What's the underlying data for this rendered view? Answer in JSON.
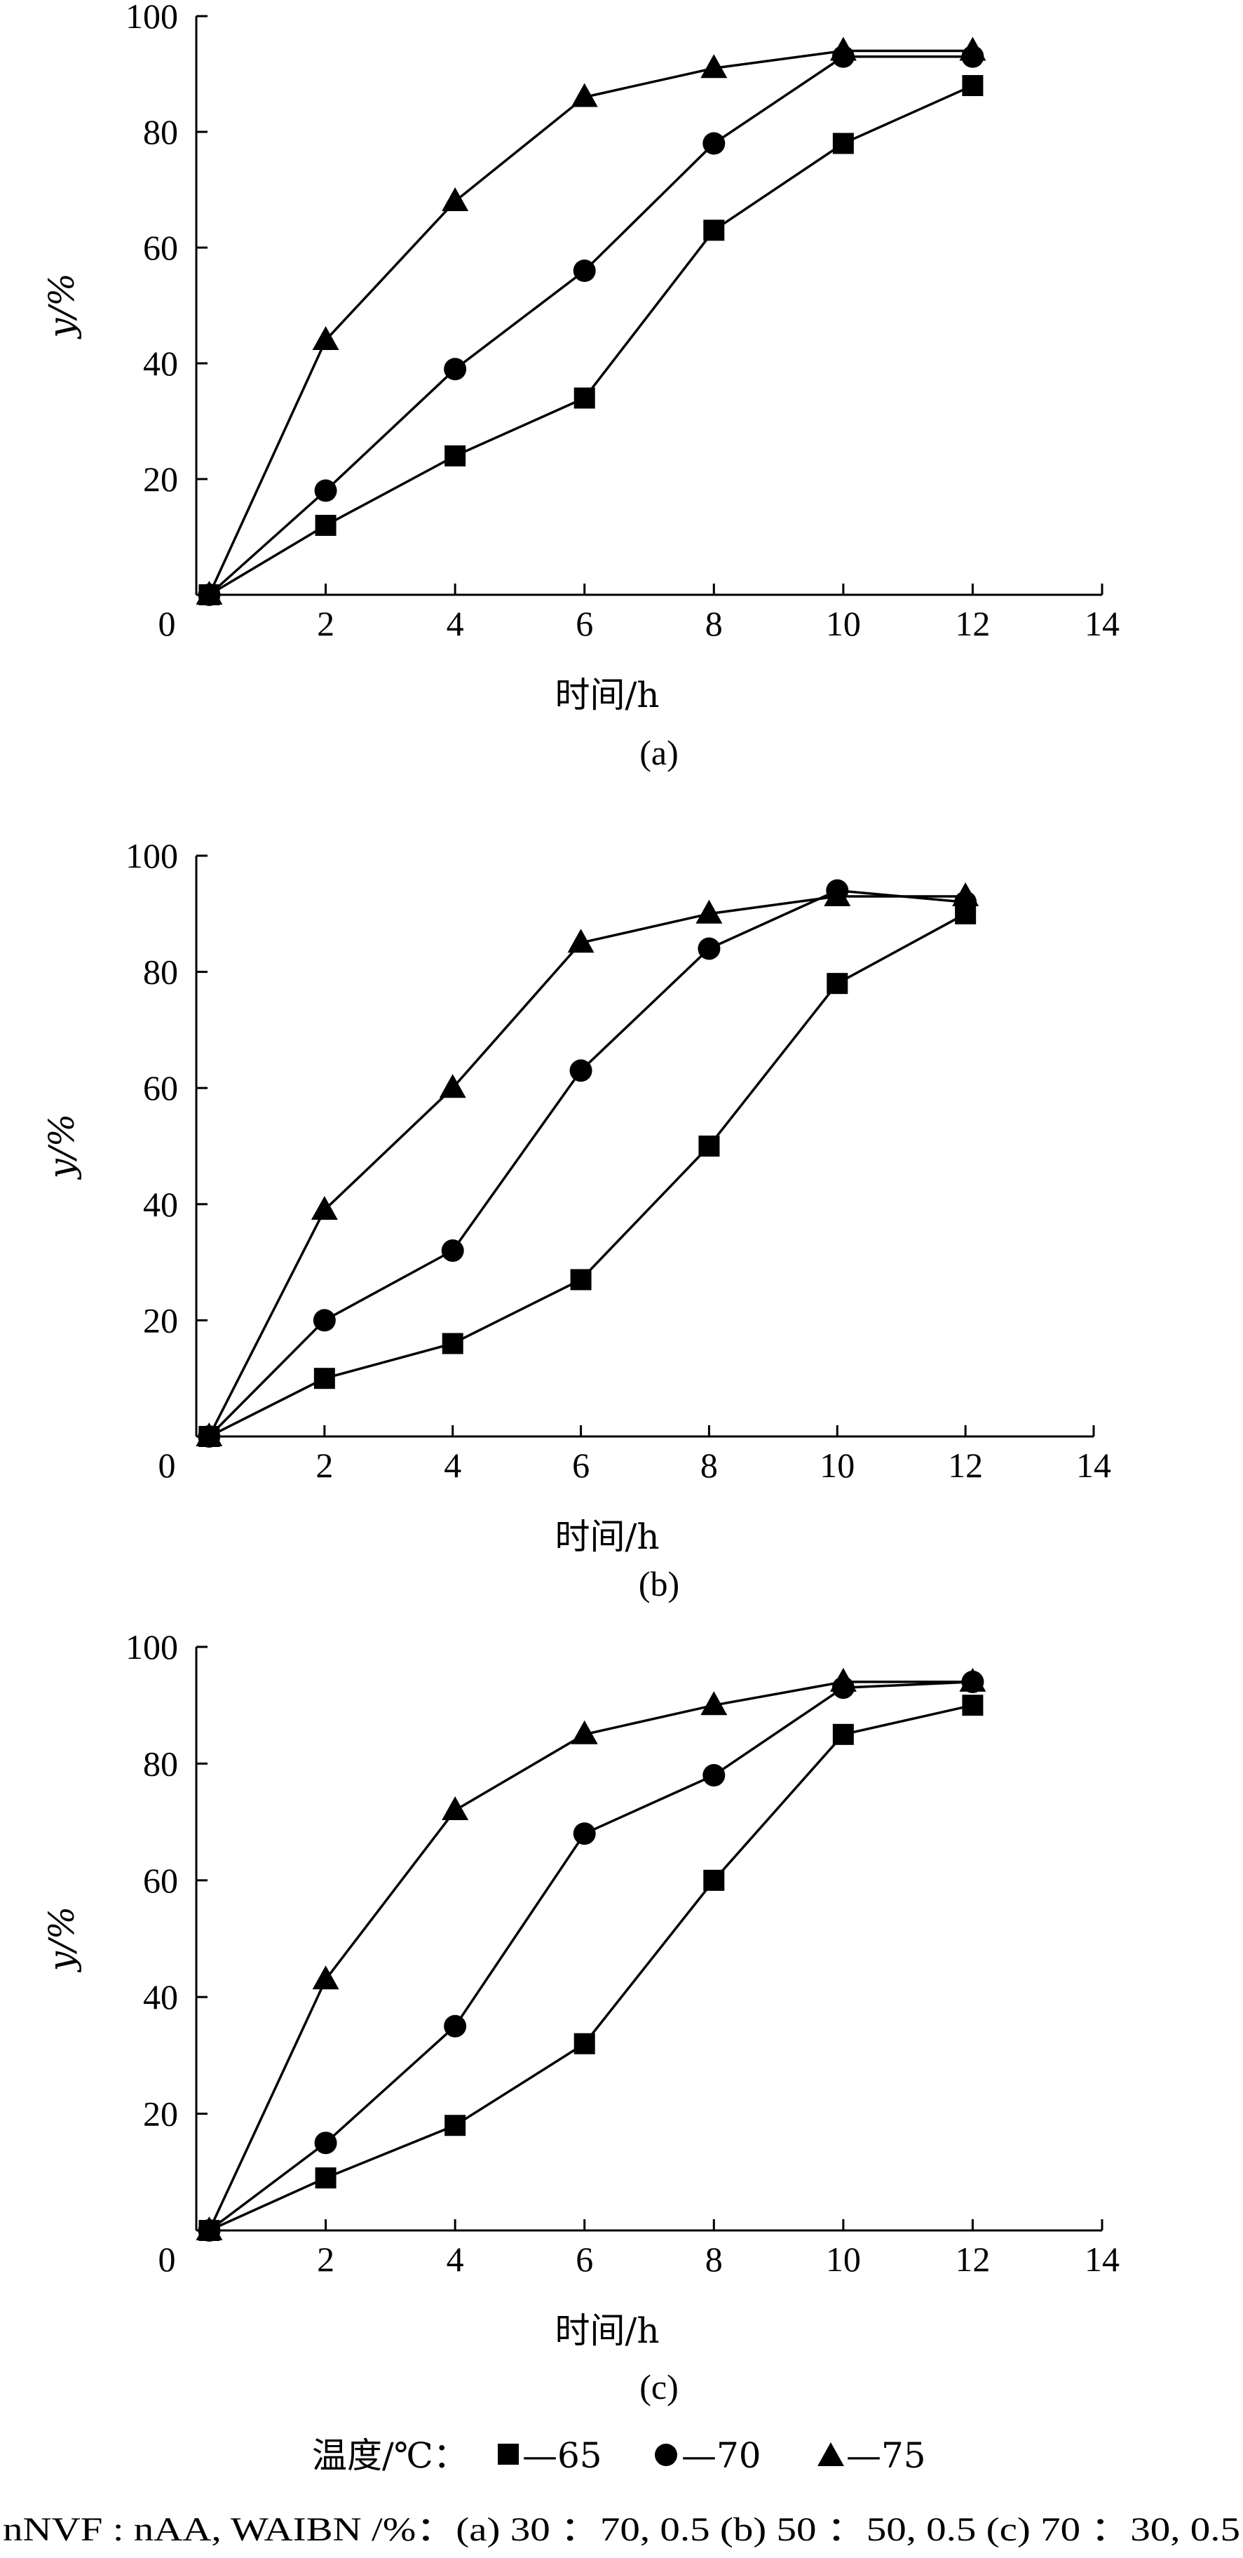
{
  "chart_data": [
    {
      "type": "line",
      "panel_label": "(a)",
      "xlabel": "时间/h",
      "ylabel": "y/%",
      "xlim": [
        0,
        14
      ],
      "ylim": [
        0,
        100
      ],
      "x_ticks": [
        0,
        2,
        4,
        6,
        8,
        10,
        12,
        14
      ],
      "y_ticks": [
        20,
        40,
        60,
        80,
        100
      ],
      "grid": false,
      "series": [
        {
          "name": "65",
          "marker": "square",
          "x": [
            0.2,
            2,
            4,
            6,
            8,
            10,
            12
          ],
          "y": [
            0,
            12,
            24,
            34,
            63,
            78,
            88
          ]
        },
        {
          "name": "70",
          "marker": "circle",
          "x": [
            0.2,
            2,
            4,
            6,
            8,
            10,
            12
          ],
          "y": [
            0,
            18,
            39,
            56,
            78,
            93,
            93
          ]
        },
        {
          "name": "75",
          "marker": "triangle",
          "x": [
            0.2,
            2,
            4,
            6,
            8,
            10,
            12
          ],
          "y": [
            0,
            44,
            68,
            86,
            91,
            94,
            94
          ]
        }
      ]
    },
    {
      "type": "line",
      "panel_label": "(b)",
      "xlabel": "时间/h",
      "ylabel": "y/%",
      "xlim": [
        0,
        14
      ],
      "ylim": [
        0,
        100
      ],
      "x_ticks": [
        0,
        2,
        4,
        6,
        8,
        10,
        12,
        14
      ],
      "y_ticks": [
        20,
        40,
        60,
        80,
        100
      ],
      "grid": false,
      "series": [
        {
          "name": "65",
          "marker": "square",
          "x": [
            0.2,
            2,
            4,
            6,
            8,
            10,
            12
          ],
          "y": [
            0,
            10,
            16,
            27,
            50,
            78,
            90
          ]
        },
        {
          "name": "70",
          "marker": "circle",
          "x": [
            0.2,
            2,
            4,
            6,
            8,
            10,
            12
          ],
          "y": [
            0,
            20,
            32,
            63,
            84,
            94,
            92
          ]
        },
        {
          "name": "75",
          "marker": "triangle",
          "x": [
            0.2,
            2,
            4,
            6,
            8,
            10,
            12
          ],
          "y": [
            0,
            39,
            60,
            85,
            90,
            93,
            93
          ]
        }
      ]
    },
    {
      "type": "line",
      "panel_label": "(c)",
      "xlabel": "时间/h",
      "ylabel": "y/%",
      "xlim": [
        0,
        14
      ],
      "ylim": [
        0,
        100
      ],
      "x_ticks": [
        0,
        2,
        4,
        6,
        8,
        10,
        12,
        14
      ],
      "y_ticks": [
        20,
        40,
        60,
        80,
        100
      ],
      "grid": false,
      "series": [
        {
          "name": "65",
          "marker": "square",
          "x": [
            0.2,
            2,
            4,
            6,
            8,
            10,
            12
          ],
          "y": [
            0,
            9,
            18,
            32,
            60,
            85,
            90
          ]
        },
        {
          "name": "70",
          "marker": "circle",
          "x": [
            0.2,
            2,
            4,
            6,
            8,
            10,
            12
          ],
          "y": [
            0,
            15,
            35,
            68,
            78,
            93,
            94
          ]
        },
        {
          "name": "75",
          "marker": "triangle",
          "x": [
            0.2,
            2,
            4,
            6,
            8,
            10,
            12
          ],
          "y": [
            0,
            43,
            72,
            85,
            90,
            94,
            94
          ]
        }
      ]
    }
  ],
  "legend": {
    "title": "温度/℃：",
    "entries": [
      {
        "marker": "square",
        "label": "—65"
      },
      {
        "marker": "circle",
        "label": "—70"
      },
      {
        "marker": "triangle",
        "label": "—75"
      }
    ]
  },
  "caption": "nNVF : nAA, WAIBN /%：(a) 30 ：70, 0.5    (b) 50 ：50, 0.5    (c) 70 ：30, 0.5"
}
